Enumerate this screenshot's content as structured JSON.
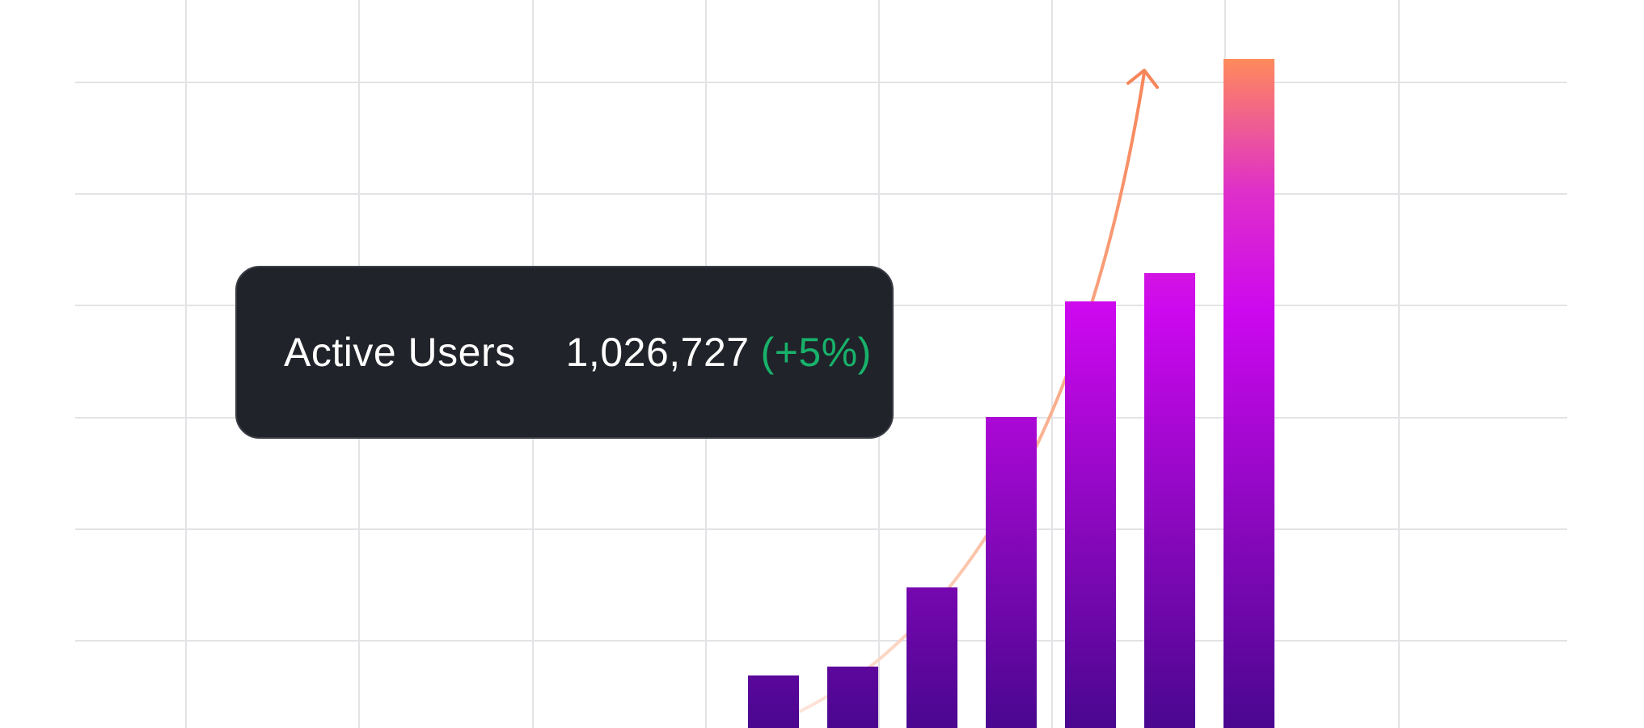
{
  "chart_data": {
    "type": "bar",
    "categories": [
      "",
      "",
      "",
      "",
      "",
      "",
      ""
    ],
    "values": [
      65,
      76,
      174,
      385,
      528,
      563,
      828
    ],
    "ylim": [
      0,
      900
    ],
    "grid": true,
    "trend_arrow": true,
    "colors": {
      "bar_bottom": "#4a078f",
      "bar_mid": "#cc08ee",
      "bar_top": "#ff8c5a",
      "trend": "#f7855a",
      "grid": "#e3e3e6"
    }
  },
  "tooltip": {
    "label": "Active Users",
    "value": "1,026,727",
    "change": "(+5%)",
    "change_color": "#18b26b"
  }
}
